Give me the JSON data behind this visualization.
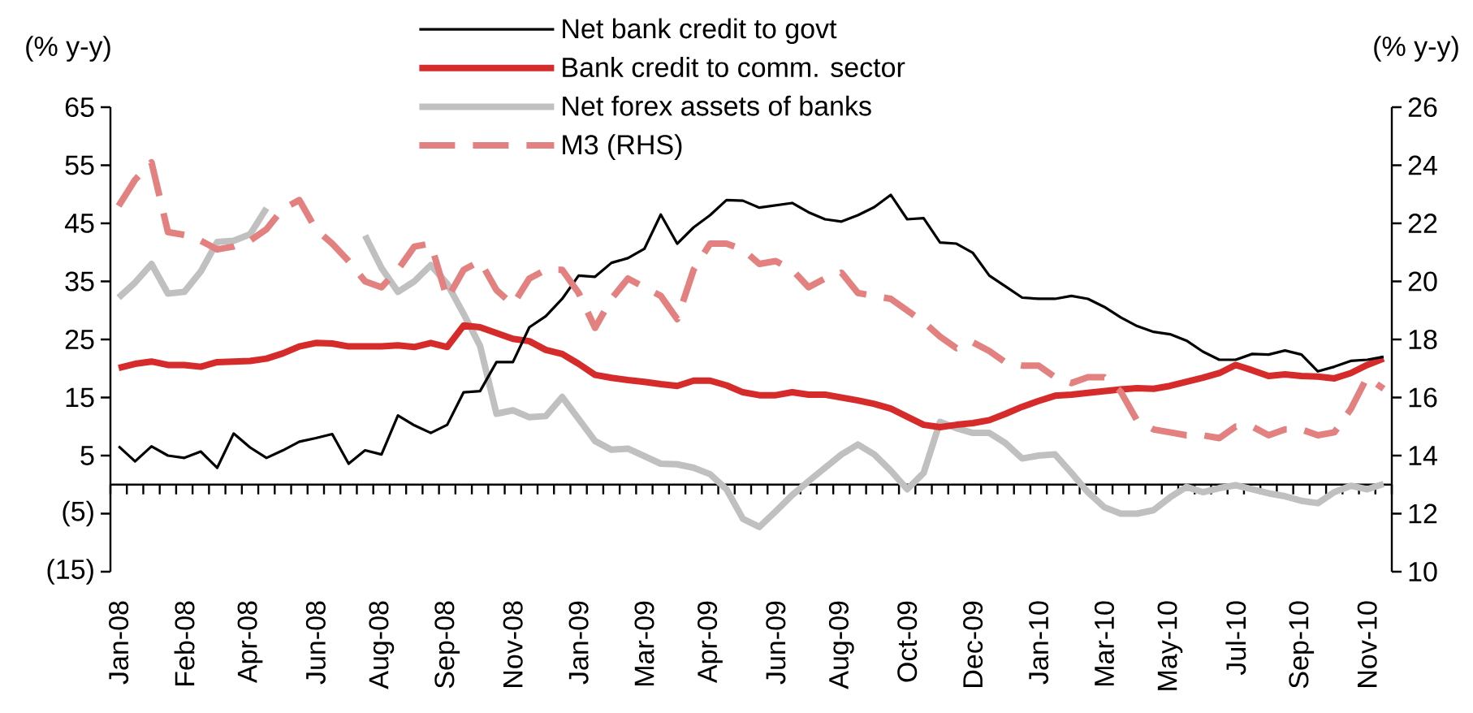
{
  "chart_data": {
    "type": "line",
    "ylabel": "(% y-y)",
    "y2label": "(% y-y)",
    "categories": [
      "Jan-08",
      null,
      null,
      null,
      "Feb-08",
      null,
      null,
      null,
      "Apr-08",
      null,
      null,
      null,
      "Jun-08",
      null,
      null,
      null,
      "Aug-08",
      null,
      null,
      null,
      "Sep-08",
      null,
      null,
      null,
      "Nov-08",
      null,
      null,
      null,
      "Jan-09",
      null,
      null,
      null,
      "Mar-09",
      null,
      null,
      null,
      "Apr-09",
      null,
      null,
      null,
      "Jun-09",
      null,
      null,
      null,
      "Aug-09",
      null,
      null,
      null,
      "Oct-09",
      null,
      null,
      null,
      "Dec-09",
      null,
      null,
      null,
      "Jan-10",
      null,
      null,
      null,
      "Mar-10",
      null,
      null,
      null,
      "May-10",
      null,
      null,
      null,
      "Jul-10",
      null,
      null,
      null,
      "Sep-10",
      null,
      null,
      null,
      "Nov-10",
      null
    ],
    "series": [
      {
        "name": "Net bank credit to govt",
        "color": "#000000",
        "values": [
          6.6,
          4.0,
          6.6,
          5.0,
          4.6,
          5.7,
          2.9,
          8.8,
          6.4,
          4.6,
          5.9,
          7.4,
          8.0,
          8.7,
          3.6,
          5.9,
          5.2,
          11.9,
          10.2,
          8.9,
          10.3,
          15.9,
          16.1,
          21.1,
          21.1,
          27.1,
          29.0,
          32.0,
          36.0,
          35.8,
          38.2,
          39.0,
          40.6,
          46.5,
          41.5,
          44.3,
          46.4,
          49.0,
          48.9,
          47.7,
          48.1,
          48.5,
          46.9,
          45.7,
          45.3,
          46.4,
          47.8,
          49.9,
          45.7,
          45.9,
          41.7,
          41.5,
          39.9,
          36.0,
          34.1,
          32.2,
          32.0,
          32.0,
          32.5,
          32.0,
          30.6,
          28.8,
          27.3,
          26.3,
          25.9,
          24.8,
          22.9,
          21.5,
          21.5,
          22.5,
          22.4,
          23.1,
          22.4,
          19.5,
          20.3,
          21.3,
          21.5,
          22.0
        ]
      },
      {
        "name": "Bank credit to comm. sector",
        "color": "#d62b2b",
        "values": [
          20.1,
          20.8,
          21.2,
          20.6,
          20.6,
          20.3,
          21.1,
          21.2,
          21.3,
          21.7,
          22.6,
          23.8,
          24.4,
          24.3,
          23.8,
          23.8,
          23.8,
          24.0,
          23.7,
          24.4,
          23.7,
          27.4,
          27.1,
          26.1,
          25.1,
          24.7,
          23.2,
          22.5,
          20.8,
          18.9,
          18.4,
          18.0,
          17.7,
          17.3,
          17.0,
          17.9,
          17.9,
          17.1,
          15.9,
          15.4,
          15.4,
          15.9,
          15.5,
          15.5,
          15.0,
          14.5,
          13.9,
          13.1,
          11.7,
          10.3,
          9.9,
          10.3,
          10.6,
          11.1,
          12.2,
          13.4,
          14.4,
          15.3,
          15.5,
          15.8,
          16.1,
          16.4,
          16.6,
          16.5,
          17.0,
          17.7,
          18.4,
          19.2,
          20.6,
          19.7,
          18.7,
          19.0,
          18.7,
          18.6,
          18.3,
          19.2,
          20.6,
          21.7
        ]
      },
      {
        "name": "Net forex assets of banks",
        "color": "#c0c0c0",
        "values": [
          32.2,
          34.8,
          38.0,
          32.9,
          33.2,
          36.7,
          41.8,
          42.0,
          43.1,
          47.6,
          null,
          null,
          null,
          null,
          null,
          42.9,
          37.3,
          33.2,
          35.0,
          37.8,
          34.6,
          29.4,
          23.9,
          12.2,
          12.8,
          11.6,
          11.8,
          15.1,
          11.3,
          7.5,
          6.0,
          6.2,
          4.9,
          3.6,
          3.5,
          2.9,
          1.8,
          -0.8,
          -5.9,
          -7.3,
          -4.6,
          -1.8,
          0.6,
          2.9,
          5.2,
          6.9,
          5.2,
          2.4,
          -0.8,
          2.0,
          10.8,
          9.7,
          8.9,
          8.9,
          7.1,
          4.5,
          5.0,
          5.2,
          2.0,
          -1.3,
          -3.9,
          -5.0,
          -5.0,
          -4.4,
          -2.2,
          -0.4,
          -1.3,
          -0.6,
          -0.1,
          -0.8,
          -1.5,
          -2.0,
          -2.8,
          -3.2,
          -1.3,
          -0.2,
          -0.8,
          0.1
        ]
      },
      {
        "name": "M3 (RHS)",
        "color": "#e38080",
        "axis": "y2",
        "line_style": "dashed",
        "values": [
          22.6,
          23.5,
          24.1,
          21.7,
          21.6,
          21.4,
          21.1,
          21.2,
          21.4,
          21.8,
          22.5,
          22.8,
          21.8,
          21.3,
          20.7,
          20.0,
          19.8,
          20.4,
          21.2,
          21.3,
          19.4,
          20.4,
          20.7,
          19.7,
          19.2,
          20.1,
          20.4,
          20.4,
          19.6,
          18.4,
          19.4,
          20.1,
          19.8,
          19.5,
          18.7,
          20.4,
          21.3,
          21.3,
          21.1,
          20.6,
          20.7,
          20.4,
          19.8,
          20.1,
          20.3,
          19.6,
          19.5,
          19.4,
          19.0,
          18.6,
          18.1,
          17.7,
          17.9,
          17.6,
          17.2,
          17.1,
          17.1,
          16.7,
          16.5,
          16.7,
          16.7,
          16.2,
          15.2,
          14.9,
          14.8,
          14.7,
          14.7,
          14.6,
          15.0,
          15.0,
          14.7,
          14.9,
          14.9,
          14.7,
          14.8,
          15.6,
          16.7,
          16.3
        ]
      }
    ],
    "ylim": [
      -15,
      65
    ],
    "yticks": [
      {
        "value": -15,
        "label": "(15)"
      },
      {
        "value": -5,
        "label": "(5)"
      },
      5,
      15,
      25,
      35,
      45,
      55,
      65
    ],
    "y2lim": [
      10,
      26
    ],
    "y2ticks": [
      10,
      12,
      14,
      16,
      18,
      20,
      22,
      24,
      26
    ],
    "legend": "top",
    "marker": "none",
    "line_style": "solid"
  }
}
